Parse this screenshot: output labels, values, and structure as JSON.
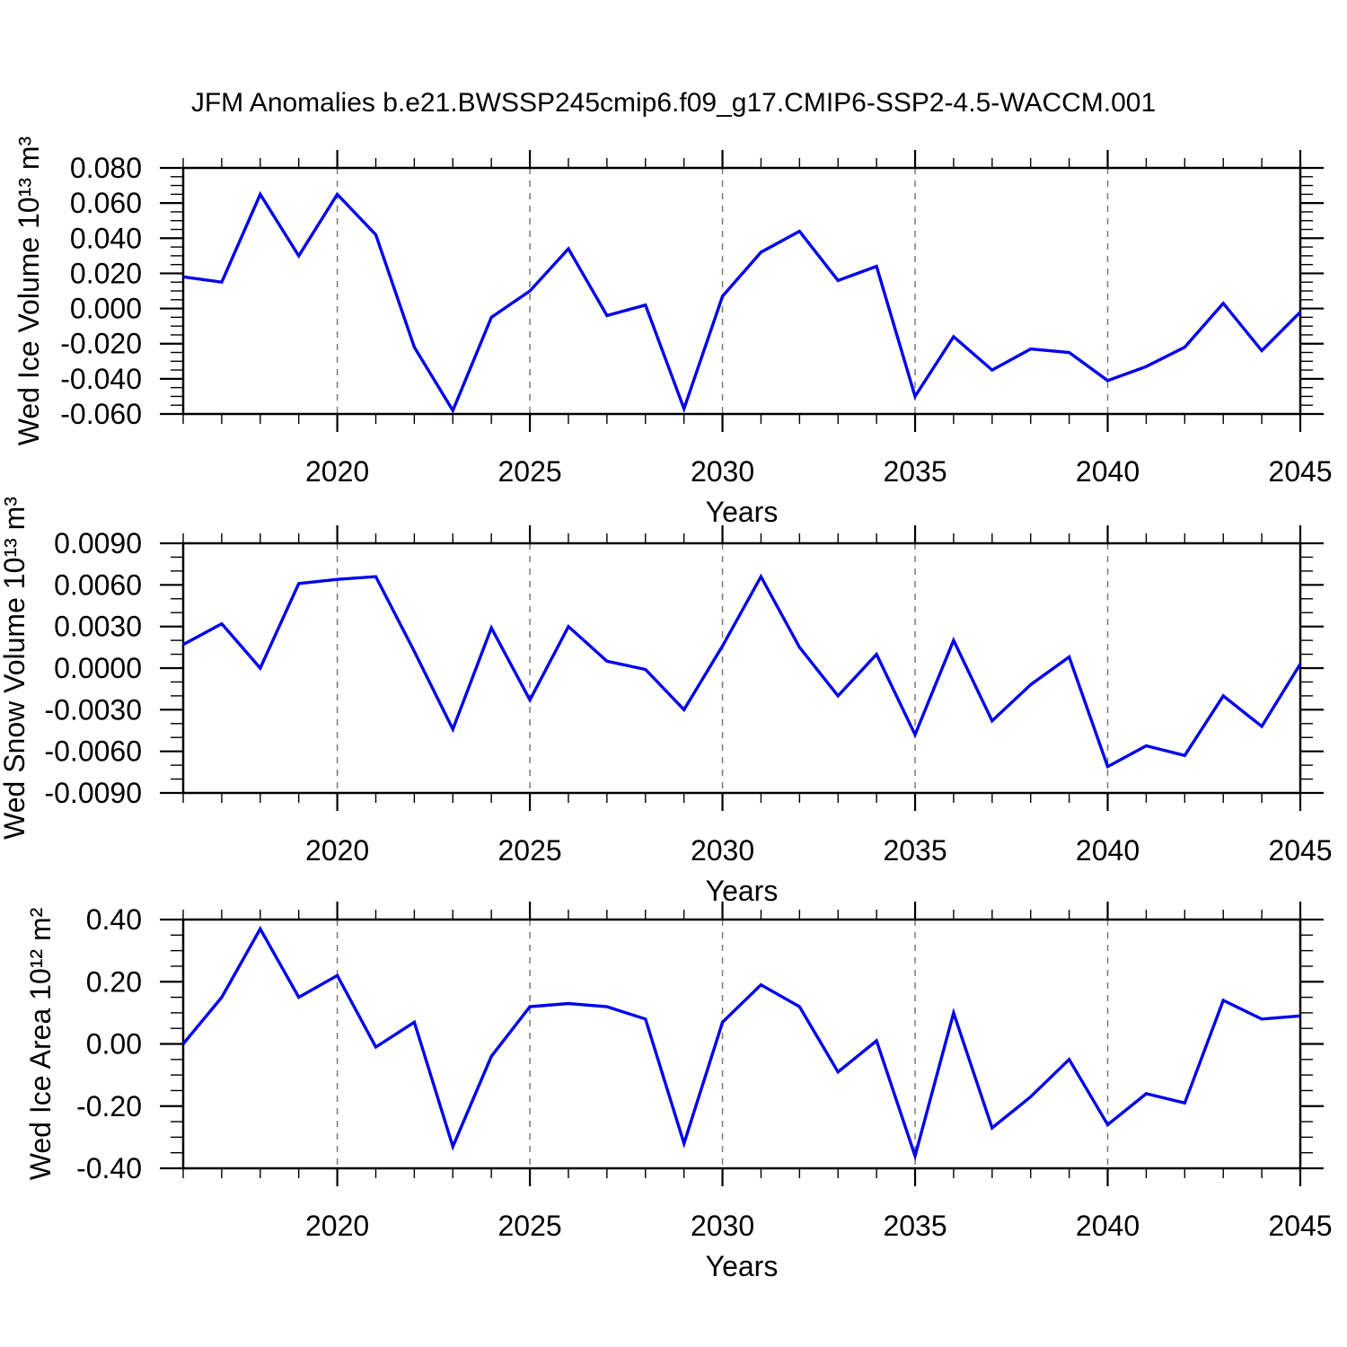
{
  "title": "JFM Anomalies b.e21.BWSSP245cmip6.f09_g17.CMIP6-SSP2-4.5-WACCM.001",
  "colors": {
    "line": "#0000EE",
    "grid": "#7a7a7a",
    "axis": "#000000",
    "text": "#000000"
  },
  "chart_data": [
    {
      "type": "line",
      "ylabel": "Wed Ice Volume 10¹³ m³",
      "xlabel": "Years",
      "xlim": [
        2016,
        2045
      ],
      "ylim": [
        -0.06,
        0.08
      ],
      "ytick_step": 0.02,
      "yminor_step": 0.005,
      "ytick_decimals": 3,
      "xticks_major": [
        2020,
        2025,
        2030,
        2035,
        2040,
        2045
      ],
      "xminor_step": 1,
      "grid_vertical_dashed": true,
      "x": [
        2016,
        2017,
        2018,
        2019,
        2020,
        2021,
        2022,
        2023,
        2024,
        2025,
        2026,
        2027,
        2028,
        2029,
        2030,
        2031,
        2032,
        2033,
        2034,
        2035,
        2036,
        2037,
        2038,
        2039,
        2040,
        2041,
        2042,
        2043,
        2044,
        2045
      ],
      "values": [
        0.018,
        0.015,
        0.065,
        0.03,
        0.065,
        0.042,
        -0.022,
        -0.058,
        -0.005,
        0.01,
        0.034,
        -0.004,
        0.002,
        -0.057,
        0.007,
        0.032,
        0.044,
        0.016,
        0.024,
        -0.05,
        -0.016,
        -0.035,
        -0.023,
        -0.025,
        -0.041,
        -0.033,
        -0.022,
        0.003,
        -0.024,
        -0.002
      ]
    },
    {
      "type": "line",
      "ylabel": "Wed Snow Volume 10¹³ m³",
      "xlabel": "Years",
      "xlim": [
        2016,
        2045
      ],
      "ylim": [
        -0.009,
        0.009
      ],
      "ytick_step": 0.003,
      "yminor_step": 0.001,
      "ytick_decimals": 4,
      "xticks_major": [
        2020,
        2025,
        2030,
        2035,
        2040,
        2045
      ],
      "xminor_step": 1,
      "grid_vertical_dashed": true,
      "x": [
        2016,
        2017,
        2018,
        2019,
        2020,
        2021,
        2022,
        2023,
        2024,
        2025,
        2026,
        2027,
        2028,
        2029,
        2030,
        2031,
        2032,
        2033,
        2034,
        2035,
        2036,
        2037,
        2038,
        2039,
        2040,
        2041,
        2042,
        2043,
        2044,
        2045
      ],
      "values": [
        0.0017,
        0.0032,
        0.0,
        0.0061,
        0.0064,
        0.0066,
        0.0012,
        -0.0044,
        0.0029,
        -0.0023,
        0.003,
        0.0005,
        -0.0001,
        -0.003,
        0.0016,
        0.0066,
        0.0015,
        -0.002,
        0.001,
        -0.0048,
        0.002,
        -0.0038,
        -0.0012,
        0.0008,
        -0.0071,
        -0.0056,
        -0.0063,
        -0.002,
        -0.0042,
        0.0003
      ]
    },
    {
      "type": "line",
      "ylabel": "Wed Ice Area 10¹² m²",
      "xlabel": "Years",
      "xlim": [
        2016,
        2045
      ],
      "ylim": [
        -0.4,
        0.4
      ],
      "ytick_step": 0.2,
      "yminor_step": 0.05,
      "ytick_decimals": 2,
      "xticks_major": [
        2020,
        2025,
        2030,
        2035,
        2040,
        2045
      ],
      "xminor_step": 1,
      "grid_vertical_dashed": true,
      "x": [
        2016,
        2017,
        2018,
        2019,
        2020,
        2021,
        2022,
        2023,
        2024,
        2025,
        2026,
        2027,
        2028,
        2029,
        2030,
        2031,
        2032,
        2033,
        2034,
        2035,
        2036,
        2037,
        2038,
        2039,
        2040,
        2041,
        2042,
        2043,
        2044,
        2045
      ],
      "values": [
        0.0,
        0.15,
        0.37,
        0.15,
        0.22,
        -0.01,
        0.07,
        -0.33,
        -0.04,
        0.12,
        0.13,
        0.12,
        0.08,
        -0.32,
        0.07,
        0.19,
        0.12,
        -0.09,
        0.01,
        -0.36,
        0.1,
        -0.27,
        -0.17,
        -0.05,
        -0.26,
        -0.16,
        -0.19,
        0.14,
        0.08,
        0.09
      ]
    }
  ]
}
